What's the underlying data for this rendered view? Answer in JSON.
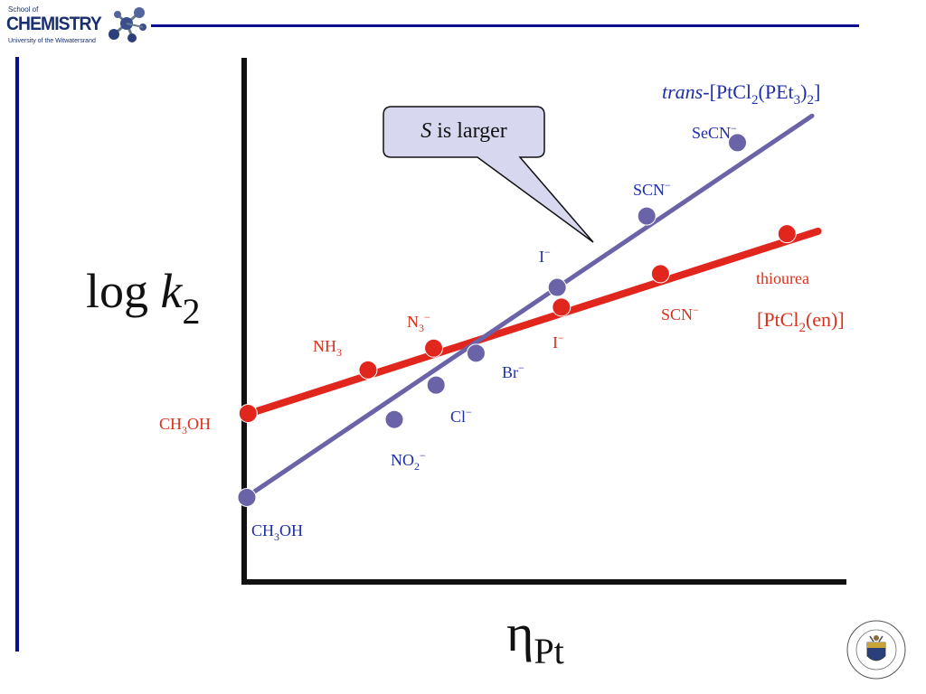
{
  "logo": {
    "line1": "School of",
    "line2": "CHEMISTRY",
    "line3": "University of the Witwatersrand",
    "icon": "molecule-icon"
  },
  "seal": {
    "name": "university-seal",
    "text": "UNIVERSITY OF THE WITWATERSRAND · JOHANNESBURG"
  },
  "colors": {
    "accent": "#0b0f8c",
    "trans_series": "#6b63a8",
    "en_series": "#e0261d",
    "blue_label": "#1f2fa8",
    "red_label": "#d8321c",
    "callout_fill": "#d7d8ef"
  },
  "chart_data": {
    "type": "scatter",
    "xlabel": "η",
    "xlabel_sub": "Pt",
    "ylabel": "log k",
    "ylabel_sub": "2",
    "xlim": [
      0,
      100
    ],
    "ylim": [
      0,
      100
    ],
    "grid": false,
    "series": [
      {
        "name": "trans-[PtCl2(PEt3)2]",
        "name_parts": {
          "italic": "trans",
          "text": "-[PtCl",
          "sub1": "2",
          "mid": "(PEt",
          "sub2": "3",
          "mid2": ")",
          "sub3": "2",
          "end": "]"
        },
        "fit": [
          [
            0,
            15
          ],
          [
            95,
            90.5
          ]
        ],
        "points": [
          {
            "label": "CH3OH",
            "x": 0.3,
            "y": 15.1
          },
          {
            "label": "NO2−",
            "x": 25,
            "y": 30.5
          },
          {
            "label": "Cl−",
            "x": 32,
            "y": 37.3
          },
          {
            "label": "Br−",
            "x": 38.7,
            "y": 43.6
          },
          {
            "label": "I−",
            "x": 52.3,
            "y": 56.6
          },
          {
            "label": "SCN−",
            "x": 67.3,
            "y": 70.7
          },
          {
            "label": "SeCN−",
            "x": 82.5,
            "y": 85.2
          }
        ]
      },
      {
        "name": "[PtCl2(en)]",
        "name_parts": {
          "text": "[PtCl",
          "sub1": "2",
          "end": "(en)]"
        },
        "fit": [
          [
            0,
            31.4
          ],
          [
            96,
            67.7
          ]
        ],
        "points": [
          {
            "label": "CH3OH",
            "x": 0.5,
            "y": 31.7
          },
          {
            "label": "",
            "x": 20.6,
            "y": 40.3
          },
          {
            "label": "N3−",
            "x": 31.6,
            "y": 44.6
          },
          {
            "label": "I−",
            "x": 53,
            "y": 52.7
          },
          {
            "label": "SCN−",
            "x": 69.6,
            "y": 59.3
          },
          {
            "label": "thiourea",
            "x": 90.8,
            "y": 67.2
          }
        ]
      }
    ],
    "point_labels": {
      "trans_ch3oh": {
        "base": "CH",
        "sub": "3",
        "end": "OH"
      },
      "no2": {
        "base": "NO",
        "sub": "2",
        "sup": "−"
      },
      "cl": {
        "base": "Cl",
        "sup": "−"
      },
      "br": {
        "base": "Br",
        "sup": "−"
      },
      "i_blue": {
        "base": "I",
        "sup": "−"
      },
      "scn_blue": {
        "base": "SCN",
        "sup": "−"
      },
      "secn": {
        "base": "SeCN",
        "sup": "−"
      },
      "en_ch3oh": {
        "base": "CH",
        "sub": "3",
        "end": "OH"
      },
      "nh3": {
        "base": "NH",
        "sub": "3"
      },
      "n3": {
        "base": "N",
        "sub": "3",
        "sup": "−"
      },
      "i_red": {
        "base": "I",
        "sup": "−"
      },
      "scn_red": {
        "base": "SCN",
        "sup": "−"
      },
      "thiourea": {
        "base": "thiourea"
      }
    },
    "annotation": {
      "italic": "S",
      "text": " is larger"
    }
  }
}
